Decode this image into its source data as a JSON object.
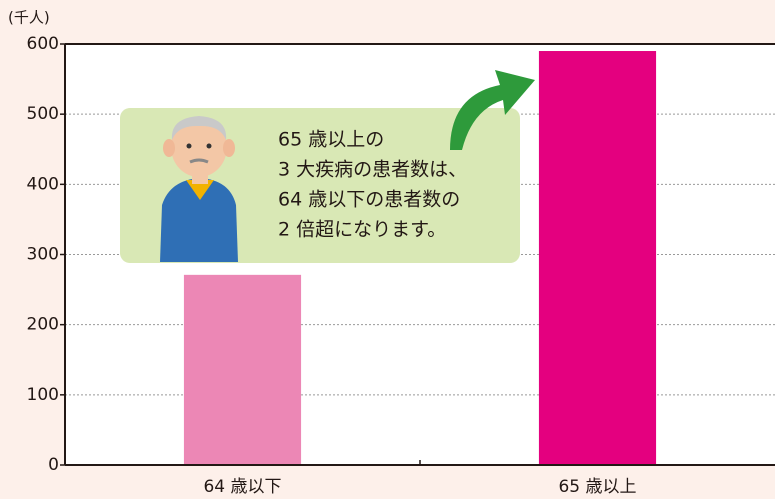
{
  "chart_data": {
    "type": "bar",
    "y_label": "(千人)",
    "categories": [
      "64 歳以下",
      "65 歳以上"
    ],
    "values": [
      271,
      590
    ],
    "colors": [
      "#ec87b5",
      "#e4007f"
    ],
    "ylim": [
      0,
      600
    ],
    "yticks": [
      0,
      100,
      200,
      300,
      400,
      500,
      600
    ],
    "grid": true,
    "annotation": [
      "65 歳以上の",
      "3 大疾病の患者数は、",
      "64 歳以下の患者数の",
      "2 倍超になります。"
    ]
  }
}
